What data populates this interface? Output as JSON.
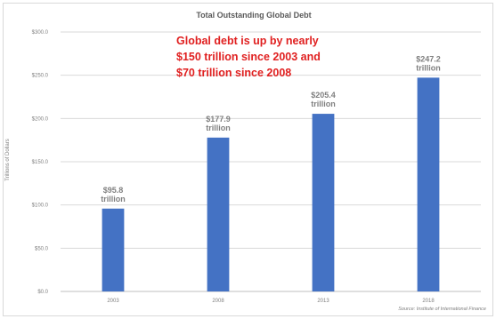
{
  "chart_data": {
    "type": "bar",
    "title": "Total Outstanding Global Debt",
    "ylabel": "Trillions of Dollars",
    "xlabel": "",
    "categories": [
      "2003",
      "2008",
      "2013",
      "2018"
    ],
    "values": [
      95.8,
      177.9,
      205.4,
      247.2
    ],
    "value_labels": [
      "$95.8 trillion",
      "$177.9 trillion",
      "$205.4 trillion",
      "$247.2 trillion"
    ],
    "yticks": [
      0,
      50,
      100,
      150,
      200,
      250,
      300
    ],
    "ytick_labels": [
      "$0.0",
      "$50.0",
      "$100.0",
      "$150.0",
      "$200.0",
      "$250.0",
      "$300.0"
    ],
    "ylim": [
      0,
      300
    ],
    "grid": true,
    "bar_color": "#4472c4",
    "annotation": [
      "Global debt is up by nearly",
      "$150 trillion since 2003 and",
      "$70 trillion since 2008"
    ],
    "annotation_color": "#e02020",
    "source": "Source: Institute of International Finance"
  }
}
